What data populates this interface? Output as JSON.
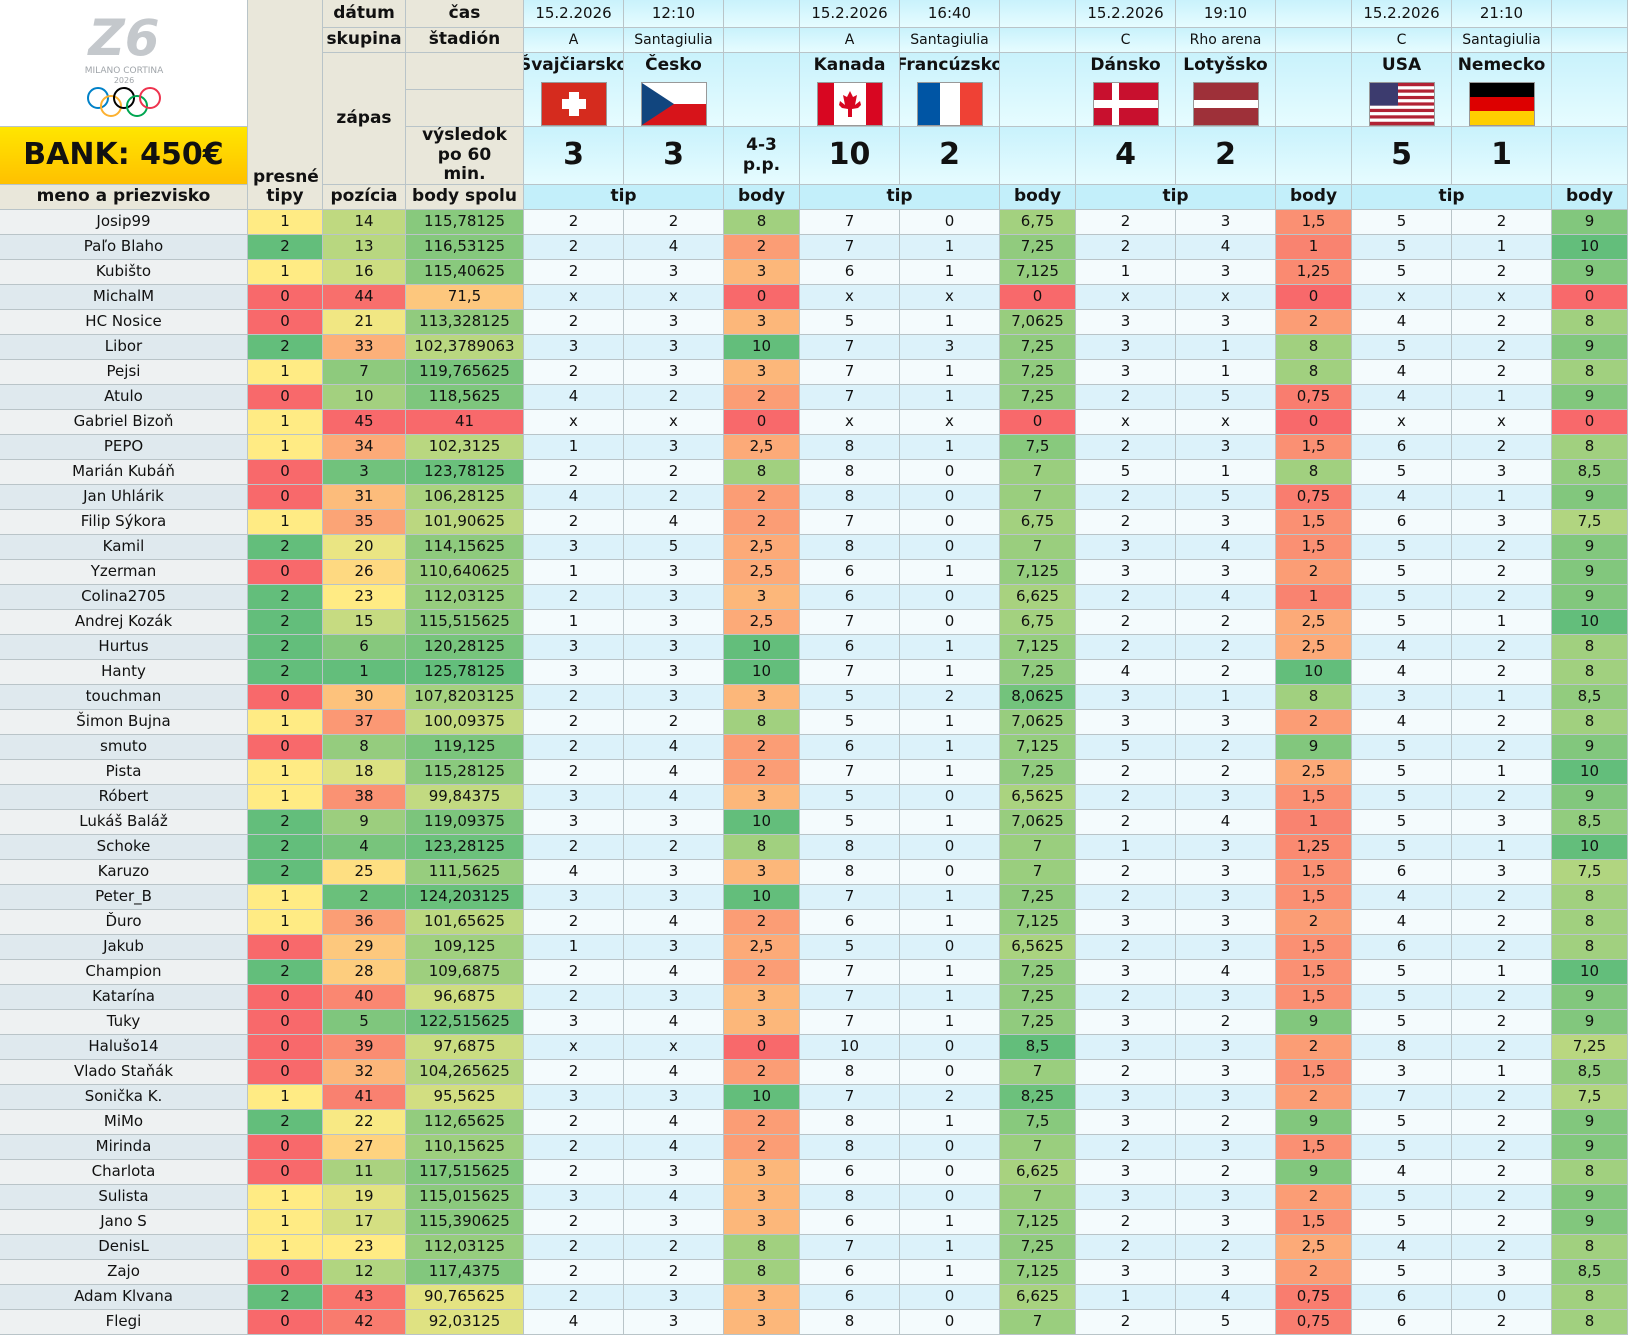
{
  "logo": {
    "line1": "MILANO CORTINA",
    "line2": "2026"
  },
  "bank": "BANK: 450€",
  "headers": {
    "datum": "dátum",
    "cas": "čas",
    "skupina": "skupina",
    "stadion": "štadión",
    "zapas": "zápas",
    "vysledok": "výsledok po 60 min.",
    "presne_tipy": "presné tipy",
    "meno": "meno a priezvisko",
    "pozicia": "pozícia",
    "body_spolu": "body spolu"
  },
  "matches": [
    {
      "date": "15.2.2026",
      "time": "12:10",
      "group": "A",
      "stadium": "Santagiulia",
      "team1": "Švajčiarsko",
      "team2": "Česko",
      "score1": 3,
      "score2": 3,
      "note": "4-3 p.p.",
      "tip_label": "tip",
      "body_label": "body"
    },
    {
      "date": "15.2.2026",
      "time": "16:40",
      "group": "A",
      "stadium": "Santagiulia",
      "team1": "Kanada",
      "team2": "Francúzsko",
      "score1": 10,
      "score2": 2,
      "tip_label": "tip",
      "body_label": "body"
    },
    {
      "date": "15.2.2026",
      "time": "19:10",
      "group": "C",
      "stadium": "Rho arena",
      "team1": "Dánsko",
      "team2": "Lotyšsko",
      "score1": 4,
      "score2": 2,
      "tip_label": "tip",
      "body_label": "body"
    },
    {
      "date": "15.2.2026",
      "time": "21:10",
      "group": "C",
      "stadium": "Santagiulia",
      "team1": "USA",
      "team2": "Nemecko",
      "score1": 5,
      "score2": 1,
      "tip_label": "tip",
      "body_label": "body"
    }
  ],
  "rows": [
    [
      "Josip99",
      1,
      14,
      "115,78125",
      2,
      2,
      8,
      7,
      0,
      "6,75",
      2,
      3,
      "1,5",
      5,
      2,
      9
    ],
    [
      "Paľo Blaho",
      2,
      13,
      "116,53125",
      2,
      4,
      2,
      7,
      1,
      "7,25",
      2,
      4,
      1,
      5,
      1,
      10
    ],
    [
      "Kubišto",
      1,
      16,
      "115,40625",
      2,
      3,
      3,
      6,
      1,
      "7,125",
      1,
      3,
      "1,25",
      5,
      2,
      9
    ],
    [
      "MichalM",
      0,
      44,
      "71,5",
      "x",
      "x",
      0,
      "x",
      "x",
      0,
      "x",
      "x",
      0,
      "x",
      "x",
      0
    ],
    [
      "HC Nosice",
      0,
      21,
      "113,328125",
      2,
      3,
      3,
      5,
      1,
      "7,0625",
      3,
      3,
      2,
      4,
      2,
      8
    ],
    [
      "Libor",
      2,
      33,
      "102,3789063",
      3,
      3,
      10,
      7,
      3,
      "7,25",
      3,
      1,
      8,
      5,
      2,
      9
    ],
    [
      "Pejsi",
      1,
      7,
      "119,765625",
      2,
      3,
      3,
      7,
      1,
      "7,25",
      3,
      1,
      8,
      4,
      2,
      8
    ],
    [
      "Atulo",
      0,
      10,
      "118,5625",
      4,
      2,
      2,
      7,
      1,
      "7,25",
      2,
      5,
      "0,75",
      4,
      1,
      9
    ],
    [
      "Gabriel Bizoň",
      1,
      45,
      41,
      "x",
      "x",
      0,
      "x",
      "x",
      0,
      "x",
      "x",
      0,
      "x",
      "x",
      0
    ],
    [
      "PEPO",
      1,
      34,
      "102,3125",
      1,
      3,
      "2,5",
      8,
      1,
      "7,5",
      2,
      3,
      "1,5",
      6,
      2,
      8
    ],
    [
      "Marián Kubáň",
      0,
      3,
      "123,78125",
      2,
      2,
      8,
      8,
      0,
      7,
      5,
      1,
      8,
      5,
      3,
      "8,5"
    ],
    [
      "Jan Uhlárik",
      0,
      31,
      "106,28125",
      4,
      2,
      2,
      8,
      0,
      7,
      2,
      5,
      "0,75",
      4,
      1,
      9
    ],
    [
      "Filip Sýkora",
      1,
      35,
      "101,90625",
      2,
      4,
      2,
      7,
      0,
      "6,75",
      2,
      3,
      "1,5",
      6,
      3,
      "7,5"
    ],
    [
      "Kamil",
      2,
      20,
      "114,15625",
      3,
      5,
      "2,5",
      8,
      0,
      7,
      3,
      4,
      "1,5",
      5,
      2,
      9
    ],
    [
      "Yzerman",
      0,
      26,
      "110,640625",
      1,
      3,
      "2,5",
      6,
      1,
      "7,125",
      3,
      3,
      2,
      5,
      2,
      9
    ],
    [
      "Colina2705",
      2,
      23,
      "112,03125",
      2,
      3,
      3,
      6,
      0,
      "6,625",
      2,
      4,
      1,
      5,
      2,
      9
    ],
    [
      "Andrej Kozák",
      2,
      15,
      "115,515625",
      1,
      3,
      "2,5",
      7,
      0,
      "6,75",
      2,
      2,
      "2,5",
      5,
      1,
      10
    ],
    [
      "Hurtus",
      2,
      6,
      "120,28125",
      3,
      3,
      10,
      6,
      1,
      "7,125",
      2,
      2,
      "2,5",
      4,
      2,
      8
    ],
    [
      "Hanty",
      2,
      1,
      "125,78125",
      3,
      3,
      10,
      7,
      1,
      "7,25",
      4,
      2,
      10,
      4,
      2,
      8
    ],
    [
      "touchman",
      0,
      30,
      "107,8203125",
      2,
      3,
      3,
      5,
      2,
      "8,0625",
      3,
      1,
      8,
      3,
      1,
      "8,5"
    ],
    [
      "Šimon Bujna",
      1,
      37,
      "100,09375",
      2,
      2,
      8,
      5,
      1,
      "7,0625",
      3,
      3,
      2,
      4,
      2,
      8
    ],
    [
      "smuto",
      0,
      8,
      "119,125",
      2,
      4,
      2,
      6,
      1,
      "7,125",
      5,
      2,
      9,
      5,
      2,
      9
    ],
    [
      "Pista",
      1,
      18,
      "115,28125",
      2,
      4,
      2,
      7,
      1,
      "7,25",
      2,
      2,
      "2,5",
      5,
      1,
      10
    ],
    [
      "Róbert",
      1,
      38,
      "99,84375",
      3,
      4,
      3,
      5,
      0,
      "6,5625",
      2,
      3,
      "1,5",
      5,
      2,
      9
    ],
    [
      "Lukáš Baláž",
      2,
      9,
      "119,09375",
      3,
      3,
      10,
      5,
      1,
      "7,0625",
      2,
      4,
      1,
      5,
      3,
      "8,5"
    ],
    [
      "Schoke",
      2,
      4,
      "123,28125",
      2,
      2,
      8,
      8,
      0,
      7,
      1,
      3,
      "1,25",
      5,
      1,
      10
    ],
    [
      "Karuzo",
      2,
      25,
      "111,5625",
      4,
      3,
      3,
      8,
      0,
      7,
      2,
      3,
      "1,5",
      6,
      3,
      "7,5"
    ],
    [
      "Peter_B",
      1,
      2,
      "124,203125",
      3,
      3,
      10,
      7,
      1,
      "7,25",
      2,
      3,
      "1,5",
      4,
      2,
      8
    ],
    [
      "Ďuro",
      1,
      36,
      "101,65625",
      2,
      4,
      2,
      6,
      1,
      "7,125",
      3,
      3,
      2,
      4,
      2,
      8
    ],
    [
      "Jakub",
      0,
      29,
      "109,125",
      1,
      3,
      "2,5",
      5,
      0,
      "6,5625",
      2,
      3,
      "1,5",
      6,
      2,
      8
    ],
    [
      "Champion",
      2,
      28,
      "109,6875",
      2,
      4,
      2,
      7,
      1,
      "7,25",
      3,
      4,
      "1,5",
      5,
      1,
      10
    ],
    [
      "Katarína",
      0,
      40,
      "96,6875",
      2,
      3,
      3,
      7,
      1,
      "7,25",
      2,
      3,
      "1,5",
      5,
      2,
      9
    ],
    [
      "Tuky",
      0,
      5,
      "122,515625",
      3,
      4,
      3,
      7,
      1,
      "7,25",
      3,
      2,
      9,
      5,
      2,
      9
    ],
    [
      "Halušo14",
      0,
      39,
      "97,6875",
      "x",
      "x",
      0,
      10,
      0,
      "8,5",
      3,
      3,
      2,
      8,
      2,
      "7,25"
    ],
    [
      "Vlado Staňák",
      0,
      32,
      "104,265625",
      2,
      4,
      2,
      8,
      0,
      7,
      2,
      3,
      "1,5",
      3,
      1,
      "8,5"
    ],
    [
      "Sonička K.",
      1,
      41,
      "95,5625",
      3,
      3,
      10,
      7,
      2,
      "8,25",
      3,
      3,
      2,
      7,
      2,
      "7,5"
    ],
    [
      "MiMo",
      2,
      22,
      "112,65625",
      2,
      4,
      2,
      8,
      1,
      "7,5",
      3,
      2,
      9,
      5,
      2,
      9
    ],
    [
      "Mirinda",
      0,
      27,
      "110,15625",
      2,
      4,
      2,
      8,
      0,
      7,
      2,
      3,
      "1,5",
      5,
      2,
      9
    ],
    [
      "Charlota",
      0,
      11,
      "117,515625",
      2,
      3,
      3,
      6,
      0,
      "6,625",
      3,
      2,
      9,
      4,
      2,
      8
    ],
    [
      "Sulista",
      1,
      19,
      "115,015625",
      3,
      4,
      3,
      8,
      0,
      7,
      3,
      3,
      2,
      5,
      2,
      9
    ],
    [
      "Jano S",
      1,
      17,
      "115,390625",
      2,
      3,
      3,
      6,
      1,
      "7,125",
      2,
      3,
      "1,5",
      5,
      2,
      9
    ],
    [
      "DenisL",
      1,
      23,
      "112,03125",
      2,
      2,
      8,
      7,
      1,
      "7,25",
      2,
      2,
      "2,5",
      4,
      2,
      8
    ],
    [
      "Zajo",
      0,
      12,
      "117,4375",
      2,
      2,
      8,
      6,
      1,
      "7,125",
      3,
      3,
      2,
      5,
      3,
      "8,5"
    ],
    [
      "Adam Klvana",
      2,
      43,
      "90,765625",
      2,
      3,
      3,
      6,
      0,
      "6,625",
      1,
      4,
      "0,75",
      6,
      0,
      8
    ],
    [
      "Flegi",
      0,
      42,
      "92,03125",
      4,
      3,
      3,
      8,
      0,
      7,
      2,
      5,
      "0,75",
      6,
      2,
      8
    ]
  ]
}
